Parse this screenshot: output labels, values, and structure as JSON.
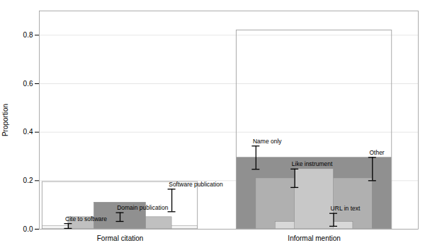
{
  "chart_data": {
    "type": "bar",
    "categories": [
      "Formal citation",
      "Informal mention"
    ],
    "ylabel": "Proportion",
    "ylim": [
      0,
      0.9
    ],
    "yticks": [
      {
        "value": 0,
        "label": "0.0"
      },
      0.2,
      0.4,
      0.6,
      0.8
    ],
    "grid": true,
    "series": [
      {
        "name": "Cite to software",
        "color": "#f5f5f5",
        "values": [
          0.013,
          null
        ],
        "err_low": [
          0.01,
          null
        ],
        "err_high": [
          0.01,
          null
        ]
      },
      {
        "name": "Domain publication",
        "color": "#c0c0c0",
        "values": [
          0.05,
          null
        ],
        "err_low": [
          0.018,
          null
        ],
        "err_high": [
          0.018,
          null
        ]
      },
      {
        "name": "Software publication",
        "color": "#909090",
        "values": [
          0.11,
          null
        ],
        "err_low": [
          0.038,
          null
        ],
        "err_high": [
          0.055,
          null
        ]
      },
      {
        "name": "Name only",
        "color": "#909090",
        "values": [
          null,
          0.295
        ],
        "err_low": [
          null,
          0.048
        ],
        "err_high": [
          null,
          0.048
        ]
      },
      {
        "name": "Like instrument",
        "color": "#b0b0b0",
        "values": [
          null,
          0.21
        ],
        "err_low": [
          null,
          0.038
        ],
        "err_high": [
          null,
          0.038
        ]
      },
      {
        "name": "URL in text",
        "color": "#d8d8d8",
        "values": [
          null,
          0.03
        ],
        "err_low": [
          null,
          0.018
        ],
        "err_high": [
          null,
          0.035
        ]
      },
      {
        "name": "Other",
        "color": "#c8c8c8",
        "values": [
          null,
          0.248
        ],
        "err_low": [
          null,
          0.048
        ],
        "err_high": [
          null,
          0.048
        ]
      }
    ],
    "group_box_top": [
      0.195,
      0.82
    ]
  }
}
